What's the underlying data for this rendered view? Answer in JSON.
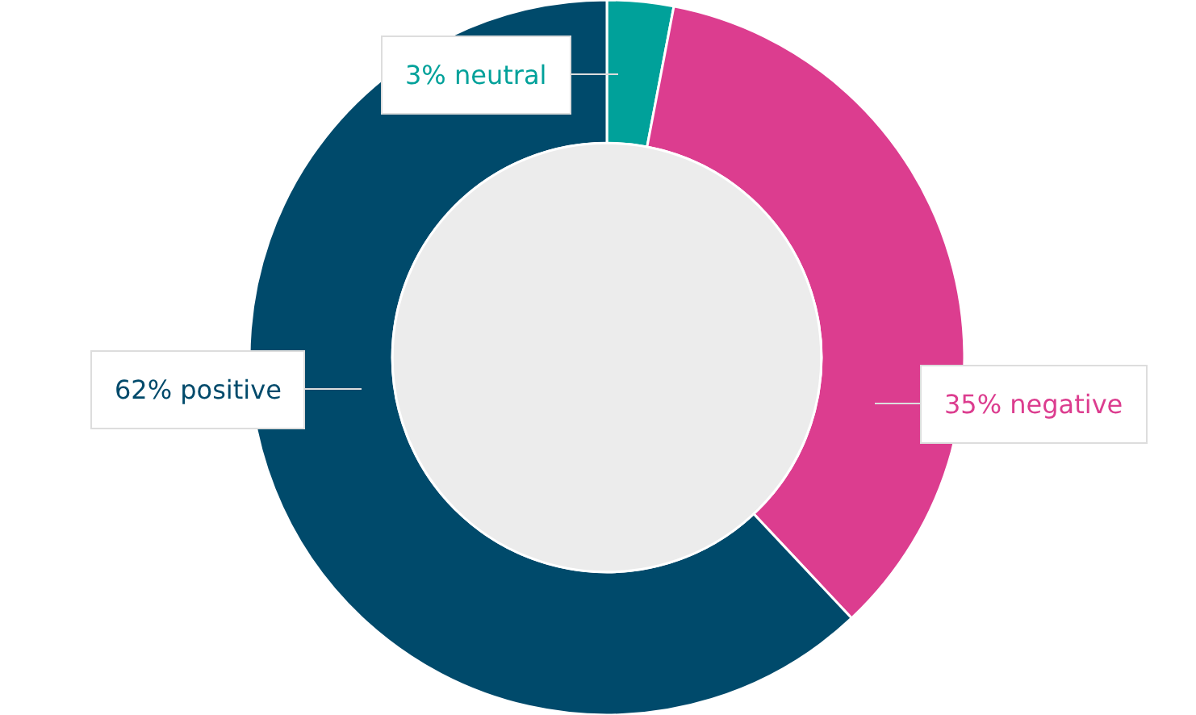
{
  "chart_data": {
    "type": "donut",
    "categories": [
      "neutral",
      "negative",
      "positive"
    ],
    "values": [
      3,
      35,
      62
    ],
    "colors": [
      "#00a19a",
      "#dc3d8f",
      "#004a6b"
    ],
    "value_labels": [
      "3%",
      "35%",
      "62%"
    ],
    "legend": false
  }
}
